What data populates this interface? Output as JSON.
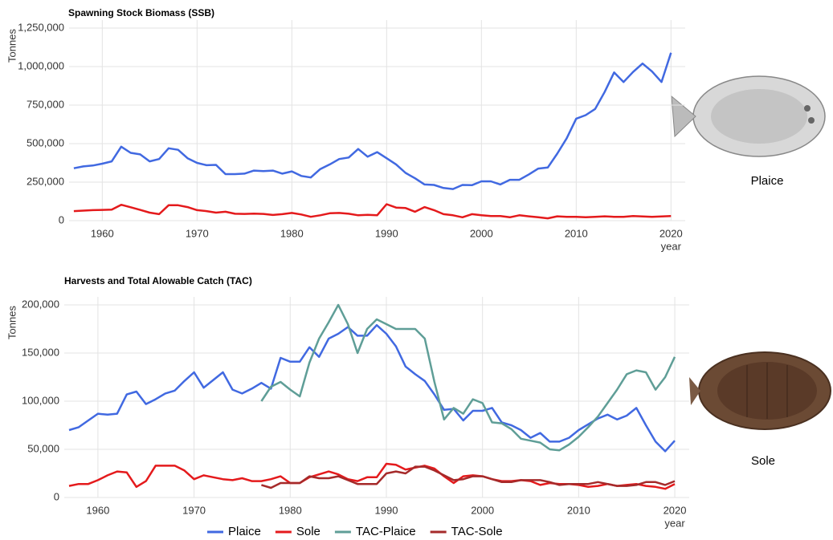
{
  "chart_data": [
    {
      "type": "line",
      "title": "Spawning Stock Biomass (SSB)",
      "y_label": "Tonnes",
      "x_label": "year",
      "annotation": "Plaice",
      "grid": true,
      "x": [
        1957,
        1958,
        1959,
        1960,
        1961,
        1962,
        1963,
        1964,
        1965,
        1966,
        1967,
        1968,
        1969,
        1970,
        1971,
        1972,
        1973,
        1974,
        1975,
        1976,
        1977,
        1978,
        1979,
        1980,
        1981,
        1982,
        1983,
        1984,
        1985,
        1986,
        1987,
        1988,
        1989,
        1990,
        1991,
        1992,
        1993,
        1994,
        1995,
        1996,
        1997,
        1998,
        1999,
        2000,
        2001,
        2002,
        2003,
        2004,
        2005,
        2006,
        2007,
        2008,
        2009,
        2010,
        2011,
        2012,
        2013,
        2014,
        2015,
        2016,
        2017,
        2018,
        2019,
        2020
      ],
      "xlim": [
        1956.5,
        2021.5
      ],
      "xticks": [
        1960,
        1970,
        1980,
        1990,
        2000,
        2010,
        2020
      ],
      "ylim": [
        0,
        1250000
      ],
      "yticks": [
        0,
        {
          "value": 250000,
          "label": "250,000"
        },
        {
          "value": 500000,
          "label": "500,000"
        },
        {
          "value": 750000,
          "label": "750,000"
        },
        {
          "value": 1000000,
          "label": "1,000,000"
        },
        {
          "value": 1250000,
          "label": "1,250,000"
        }
      ],
      "series": [
        {
          "color": "#4169e1",
          "values": [
            340000,
            352000,
            358000,
            370000,
            385000,
            480000,
            440000,
            430000,
            385000,
            400000,
            470000,
            460000,
            405000,
            375000,
            360000,
            362000,
            302000,
            302000,
            305000,
            325000,
            322000,
            325000,
            305000,
            320000,
            290000,
            280000,
            335000,
            365000,
            400000,
            410000,
            465000,
            415000,
            445000,
            405000,
            365000,
            310000,
            275000,
            235000,
            232000,
            212000,
            205000,
            232000,
            230000,
            255000,
            255000,
            235000,
            265000,
            265000,
            300000,
            338000,
            345000,
            435000,
            535000,
            662000,
            685000,
            725000,
            835000,
            962000,
            900000,
            965000,
            1020000,
            968000,
            900000,
            1090000
          ]
        },
        {
          "color": "#e41a1c",
          "values": [
            62000,
            65000,
            68000,
            70000,
            72000,
            103000,
            87000,
            70000,
            52000,
            42000,
            100000,
            100000,
            88000,
            68000,
            62000,
            52000,
            58000,
            45000,
            44000,
            46000,
            44000,
            37000,
            42000,
            50000,
            40000,
            25000,
            35000,
            48000,
            50000,
            45000,
            35000,
            38000,
            35000,
            107000,
            85000,
            82000,
            58000,
            88000,
            68000,
            42000,
            35000,
            22000,
            42000,
            35000,
            30000,
            30000,
            22000,
            35000,
            28000,
            22000,
            15000,
            28000,
            25000,
            25000,
            22000,
            25000,
            28000,
            25000,
            25000,
            30000,
            27000,
            25000,
            27000,
            30000
          ]
        }
      ]
    },
    {
      "type": "line",
      "title": "Harvests and Total Alowable Catch (TAC)",
      "y_label": "Tonnes",
      "x_label": "year",
      "annotation": "Sole",
      "grid": true,
      "legend": "bottom",
      "x": [
        1957,
        1958,
        1959,
        1960,
        1961,
        1962,
        1963,
        1964,
        1965,
        1966,
        1967,
        1968,
        1969,
        1970,
        1971,
        1972,
        1973,
        1974,
        1975,
        1976,
        1977,
        1978,
        1979,
        1980,
        1981,
        1982,
        1983,
        1984,
        1985,
        1986,
        1987,
        1988,
        1989,
        1990,
        1991,
        1992,
        1993,
        1994,
        1995,
        1996,
        1997,
        1998,
        1999,
        2000,
        2001,
        2002,
        2003,
        2004,
        2005,
        2006,
        2007,
        2008,
        2009,
        2010,
        2011,
        2012,
        2013,
        2014,
        2015,
        2016,
        2017,
        2018,
        2019,
        2020
      ],
      "xlim": [
        1956.5,
        2021.5
      ],
      "xticks": [
        1960,
        1970,
        1980,
        1990,
        2000,
        2010,
        2020
      ],
      "ylim": [
        0,
        200000
      ],
      "yticks": [
        0,
        {
          "value": 50000,
          "label": "50,000"
        },
        {
          "value": 100000,
          "label": "100,000"
        },
        {
          "value": 150000,
          "label": "150,000"
        },
        {
          "value": 200000,
          "label": "200,000"
        }
      ],
      "series": [
        {
          "name": "Plaice",
          "color": "#4169e1",
          "values": [
            70000,
            73000,
            80000,
            87000,
            86000,
            87000,
            107000,
            110000,
            97000,
            102000,
            108000,
            111000,
            121000,
            130000,
            114000,
            122000,
            130000,
            112000,
            108000,
            113000,
            119000,
            113000,
            145000,
            141000,
            141000,
            156000,
            146000,
            165000,
            170000,
            177000,
            168000,
            168000,
            179000,
            170000,
            157000,
            136000,
            128000,
            121000,
            107000,
            91000,
            92000,
            80000,
            90000,
            90000,
            93000,
            78000,
            75000,
            70000,
            62000,
            67000,
            58000,
            58000,
            62000,
            70000,
            76000,
            82000,
            86000,
            81000,
            85000,
            93000,
            75000,
            58000,
            48000,
            59000
          ]
        },
        {
          "name": "Sole",
          "color": "#e41a1c",
          "values": [
            12000,
            14000,
            14000,
            18000,
            23000,
            27000,
            26000,
            11000,
            17000,
            33000,
            33000,
            33000,
            28000,
            19000,
            23000,
            21000,
            19000,
            18000,
            20000,
            17000,
            17000,
            19000,
            22000,
            15000,
            15000,
            21000,
            24000,
            27000,
            24000,
            19000,
            17000,
            21000,
            21000,
            35000,
            34000,
            29000,
            31000,
            33000,
            30000,
            22000,
            15000,
            22000,
            23000,
            22000,
            19000,
            17000,
            17000,
            18000,
            17000,
            13000,
            15000,
            14000,
            14000,
            13000,
            11000,
            12000,
            14000,
            12000,
            13000,
            14000,
            12000,
            11000,
            9000,
            14000
          ]
        },
        {
          "name": "TAC-Plaice",
          "color": "#5f9e97",
          "values": [
            null,
            null,
            null,
            null,
            null,
            null,
            null,
            null,
            null,
            null,
            null,
            null,
            null,
            null,
            null,
            null,
            null,
            null,
            null,
            null,
            100000,
            115000,
            120000,
            112000,
            105000,
            140000,
            165000,
            182000,
            200000,
            180000,
            150000,
            175000,
            185000,
            180000,
            175000,
            175000,
            175000,
            165000,
            120000,
            81000,
            93000,
            87000,
            102000,
            98000,
            78000,
            77000,
            71000,
            61000,
            59000,
            57000,
            50000,
            49000,
            55000,
            63000,
            73000,
            84000,
            98000,
            112000,
            128000,
            132000,
            130000,
            112000,
            125000,
            146000
          ]
        },
        {
          "name": "TAC-Sole",
          "color": "#a52a2a",
          "values": [
            null,
            null,
            null,
            null,
            null,
            null,
            null,
            null,
            null,
            null,
            null,
            null,
            null,
            null,
            null,
            null,
            null,
            null,
            null,
            null,
            13000,
            10000,
            15000,
            15000,
            15000,
            22000,
            20000,
            20000,
            22000,
            18000,
            14000,
            14000,
            14000,
            25000,
            27000,
            25000,
            32000,
            32000,
            28000,
            23000,
            18000,
            19000,
            22000,
            22000,
            19000,
            16000,
            16000,
            18000,
            18000,
            18000,
            16000,
            13000,
            14000,
            14000,
            14000,
            16000,
            14000,
            12000,
            12000,
            13000,
            16000,
            16000,
            13000,
            17000
          ]
        }
      ]
    }
  ]
}
